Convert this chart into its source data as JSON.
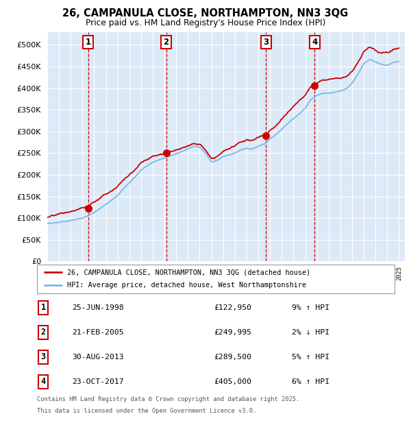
{
  "title": "26, CAMPANULA CLOSE, NORTHAMPTON, NN3 3QG",
  "subtitle": "Price paid vs. HM Land Registry's House Price Index (HPI)",
  "ytick_values": [
    0,
    50000,
    100000,
    150000,
    200000,
    250000,
    300000,
    350000,
    400000,
    450000,
    500000
  ],
  "ylim": [
    0,
    530000
  ],
  "xlim_start": 1995.0,
  "xlim_end": 2025.5,
  "plot_bg_color": "#dce9f7",
  "grid_color": "#ffffff",
  "hpi_line_color": "#7ab8e8",
  "price_line_color": "#cc0000",
  "sale_marker_color": "#cc0000",
  "dashed_line_color": "#cc0000",
  "box_edge_color": "#cc0000",
  "transactions": [
    {
      "num": 1,
      "date_str": "25-JUN-1998",
      "year": 1998.49,
      "price": 122950
    },
    {
      "num": 2,
      "date_str": "21-FEB-2005",
      "year": 2005.14,
      "price": 249995
    },
    {
      "num": 3,
      "date_str": "30-AUG-2013",
      "year": 2013.66,
      "price": 289500
    },
    {
      "num": 4,
      "date_str": "23-OCT-2017",
      "year": 2017.81,
      "price": 405000
    }
  ],
  "legend_label_red": "26, CAMPANULA CLOSE, NORTHAMPTON, NN3 3QG (detached house)",
  "legend_label_blue": "HPI: Average price, detached house, West Northamptonshire",
  "footer_line1": "Contains HM Land Registry data © Crown copyright and database right 2025.",
  "footer_line2": "This data is licensed under the Open Government Licence v3.0.",
  "table_rows": [
    {
      "num": 1,
      "date": "25-JUN-1998",
      "price": "£122,950",
      "pct_hpi": "9% ↑ HPI"
    },
    {
      "num": 2,
      "date": "21-FEB-2005",
      "price": "£249,995",
      "pct_hpi": "2% ↓ HPI"
    },
    {
      "num": 3,
      "date": "30-AUG-2013",
      "price": "£289,500",
      "pct_hpi": "5% ↑ HPI"
    },
    {
      "num": 4,
      "date": "23-OCT-2017",
      "price": "£405,000",
      "pct_hpi": "6% ↑ HPI"
    }
  ]
}
